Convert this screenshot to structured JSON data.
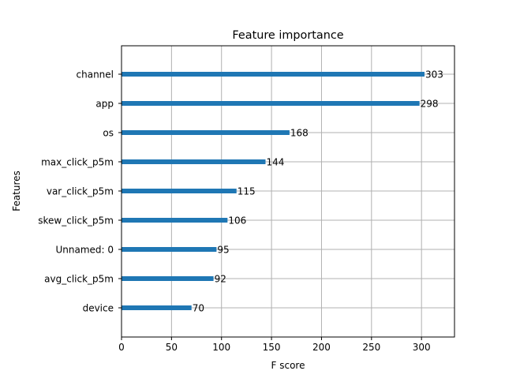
{
  "chart_data": {
    "type": "bar",
    "orientation": "horizontal",
    "title": "Feature importance",
    "xlabel": "F score",
    "ylabel": "Features",
    "categories": [
      "channel",
      "app",
      "os",
      "max_click_p5m",
      "var_click_p5m",
      "skew_click_p5m",
      "Unnamed: 0",
      "avg_click_p5m",
      "device"
    ],
    "values": [
      303,
      298,
      168,
      144,
      115,
      106,
      95,
      92,
      70
    ],
    "value_labels": [
      "303",
      "298",
      "168",
      "144",
      "115",
      "106",
      "95",
      "92",
      "70"
    ],
    "xlim": [
      0,
      333
    ],
    "xticks": [
      0,
      50,
      100,
      150,
      200,
      250,
      300
    ],
    "xtick_labels": [
      "0",
      "50",
      "100",
      "150",
      "200",
      "250",
      "300"
    ],
    "grid": true,
    "bar_color": "#1f77b4"
  }
}
